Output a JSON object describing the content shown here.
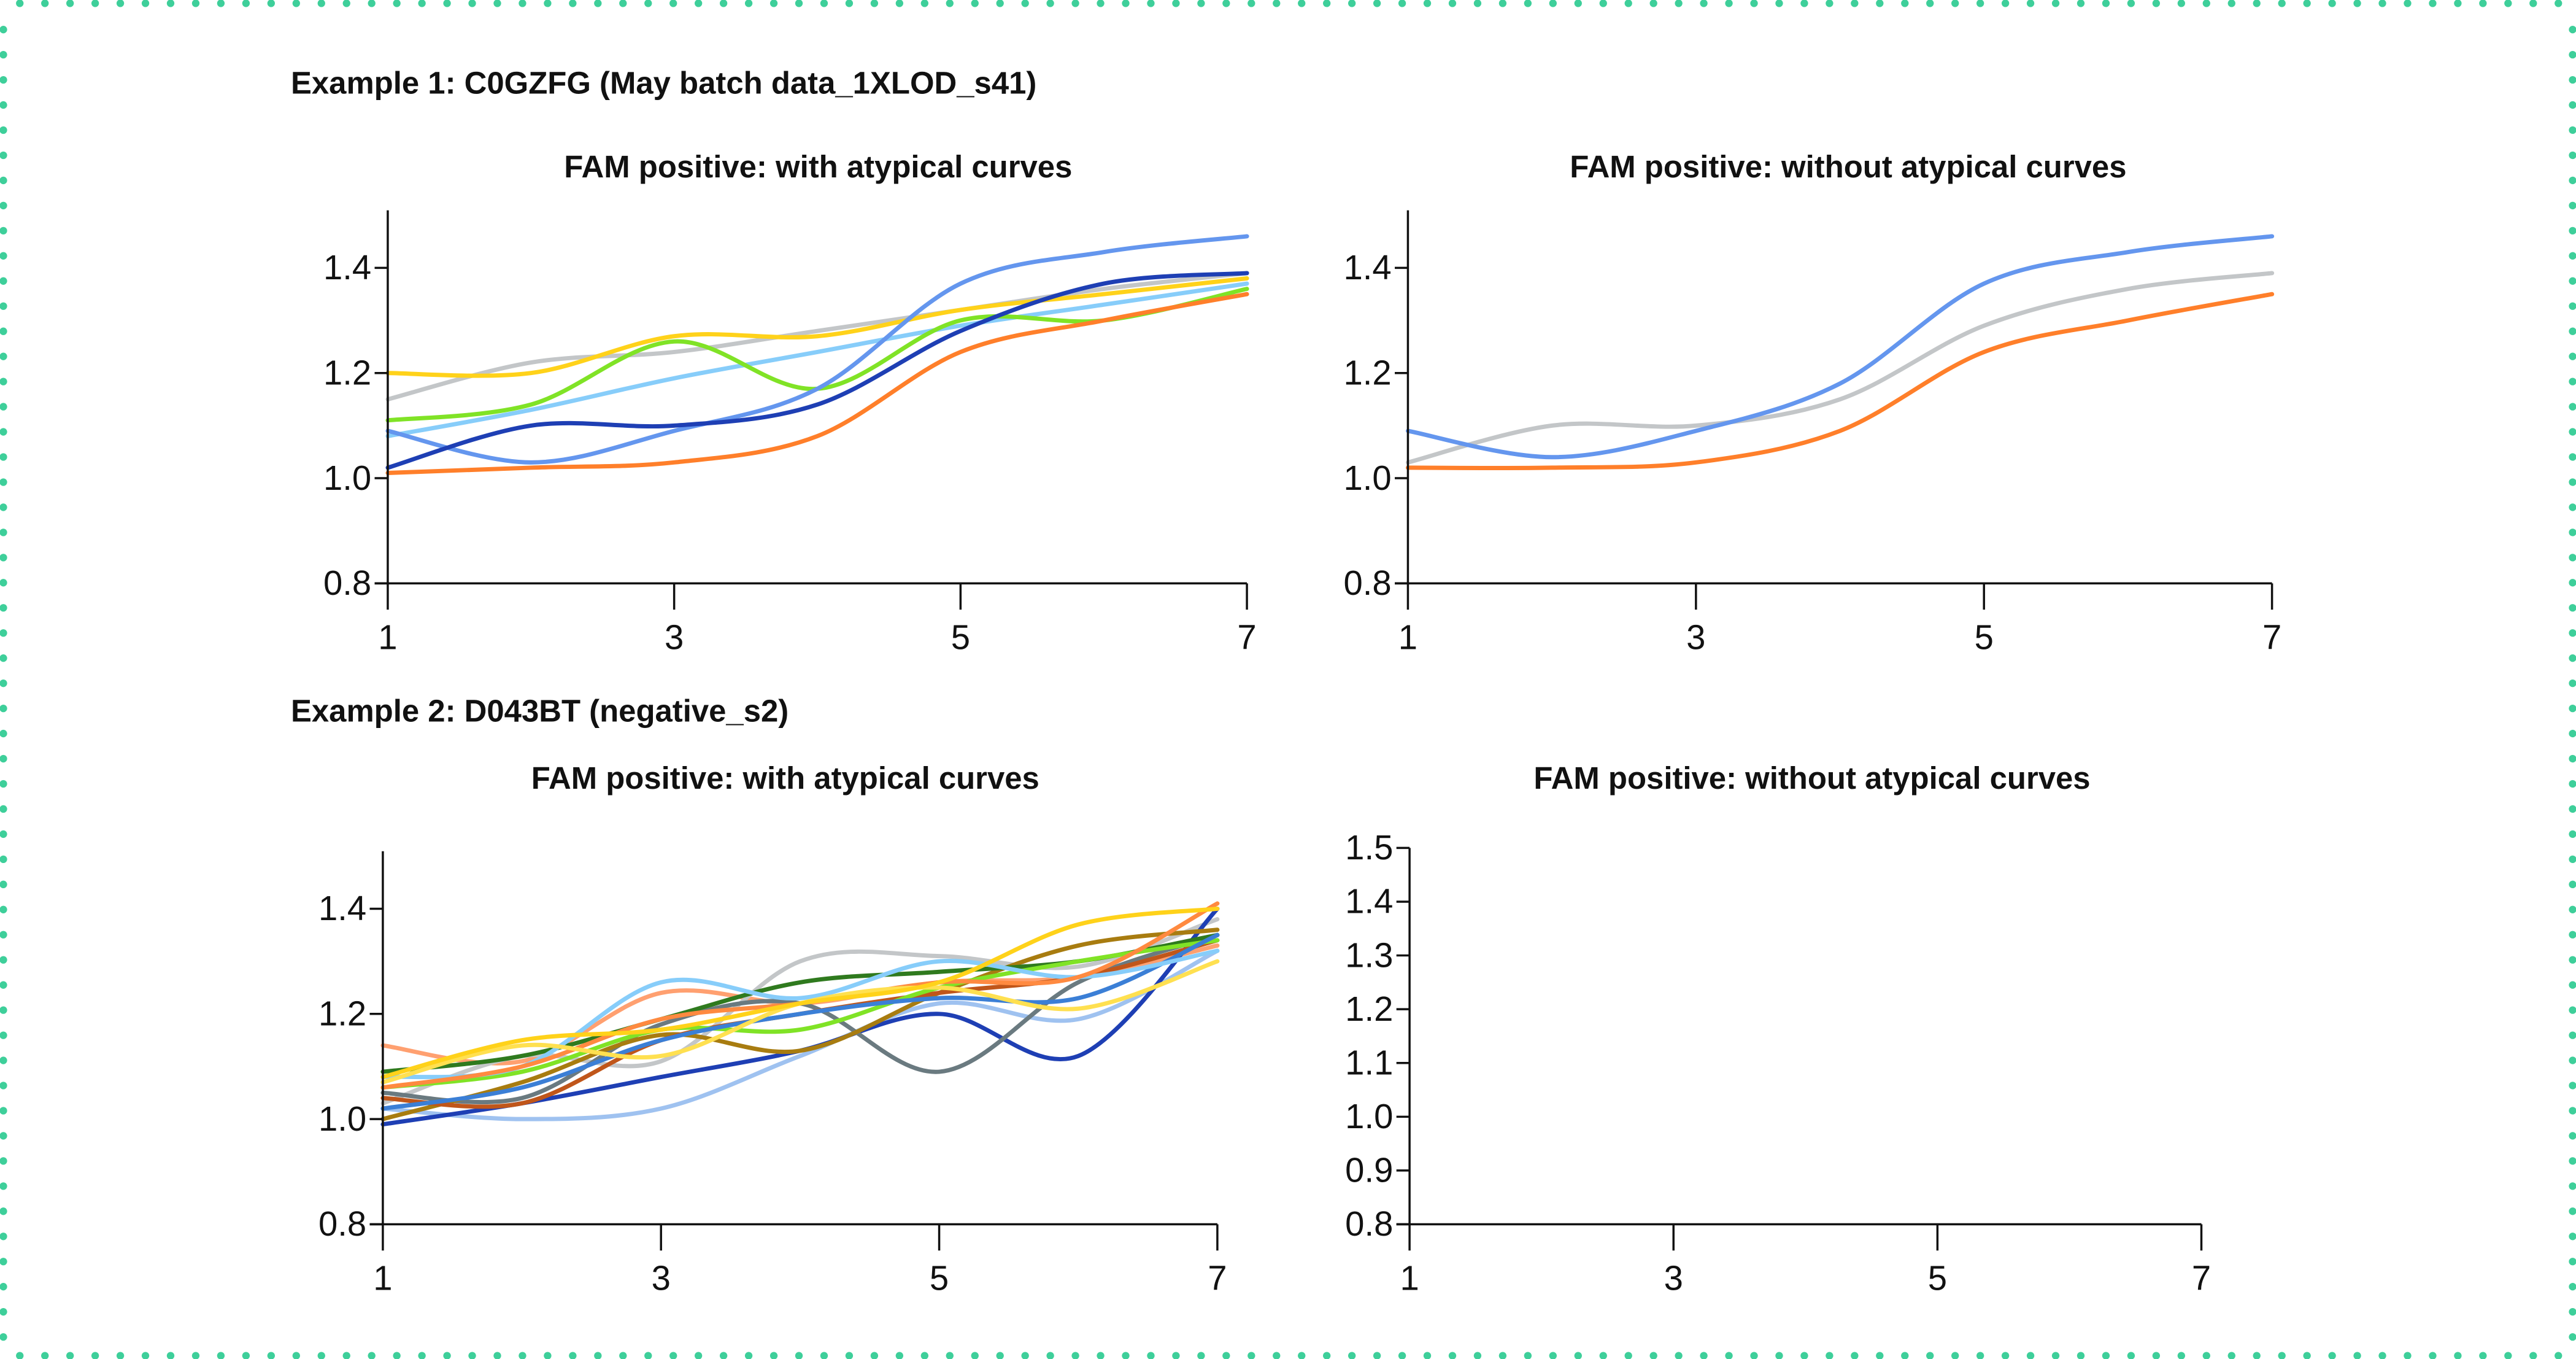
{
  "border_color": "#3ecf9a",
  "chart_data": [
    {
      "type": "line",
      "group_title": "Example 1: C0GZFG (May batch data_1XLOD_s41)",
      "title": "FAM positive: with atypical curves",
      "x": [
        1,
        2,
        3,
        4,
        5,
        6,
        7
      ],
      "xticks": [
        "1",
        "3",
        "5",
        "7"
      ],
      "yticks": [
        "0.8",
        "1.0",
        "1.2",
        "1.4"
      ],
      "xlim": [
        1,
        7
      ],
      "ylim": [
        0.8,
        1.5
      ],
      "grid": false,
      "series": [
        {
          "color": "#c3c6c8",
          "values": [
            1.15,
            1.22,
            1.24,
            1.28,
            1.32,
            1.36,
            1.39
          ]
        },
        {
          "color": "#87cdfa",
          "values": [
            1.08,
            1.13,
            1.19,
            1.24,
            1.29,
            1.33,
            1.37
          ]
        },
        {
          "color": "#ffd21a",
          "values": [
            1.2,
            1.2,
            1.27,
            1.27,
            1.32,
            1.35,
            1.38
          ]
        },
        {
          "color": "#80e326",
          "values": [
            1.11,
            1.14,
            1.26,
            1.17,
            1.3,
            1.3,
            1.36
          ]
        },
        {
          "color": "#6496ee",
          "values": [
            1.09,
            1.03,
            1.09,
            1.17,
            1.37,
            1.43,
            1.46
          ]
        },
        {
          "color": "#ff7f2a",
          "values": [
            1.01,
            1.02,
            1.03,
            1.08,
            1.24,
            1.3,
            1.35
          ]
        },
        {
          "color": "#1e3fb4",
          "values": [
            1.02,
            1.1,
            1.1,
            1.14,
            1.28,
            1.37,
            1.39
          ]
        }
      ]
    },
    {
      "type": "line",
      "title": "FAM positive: without atypical curves",
      "x": [
        1,
        2,
        3,
        4,
        5,
        6,
        7
      ],
      "xticks": [
        "1",
        "3",
        "5",
        "7"
      ],
      "yticks": [
        "0.8",
        "1.0",
        "1.2",
        "1.4"
      ],
      "xlim": [
        1,
        7
      ],
      "ylim": [
        0.8,
        1.5
      ],
      "grid": false,
      "series": [
        {
          "color": "#c3c6c8",
          "values": [
            1.03,
            1.1,
            1.1,
            1.15,
            1.29,
            1.36,
            1.39
          ]
        },
        {
          "color": "#6496ee",
          "values": [
            1.09,
            1.04,
            1.09,
            1.18,
            1.37,
            1.43,
            1.46
          ]
        },
        {
          "color": "#ff7f2a",
          "values": [
            1.02,
            1.02,
            1.03,
            1.09,
            1.24,
            1.3,
            1.35
          ]
        }
      ]
    },
    {
      "type": "line",
      "group_title": "Example 2: D043BT (negative_s2)",
      "title": "FAM positive: with atypical curves",
      "x": [
        1,
        2,
        3,
        4,
        5,
        6,
        7
      ],
      "xticks": [
        "1",
        "3",
        "5",
        "7"
      ],
      "yticks": [
        "0.8",
        "1.0",
        "1.2",
        "1.4"
      ],
      "xlim": [
        1,
        7
      ],
      "ylim": [
        0.8,
        1.5
      ],
      "grid": false,
      "series": [
        {
          "color": "#ffa070",
          "values": [
            1.14,
            1.11,
            1.24,
            1.22,
            1.26,
            1.27,
            1.33
          ]
        },
        {
          "color": "#c3c6c8",
          "values": [
            1.03,
            1.12,
            1.11,
            1.3,
            1.31,
            1.29,
            1.38
          ]
        },
        {
          "color": "#9fc2f0",
          "values": [
            1.02,
            1.0,
            1.02,
            1.12,
            1.22,
            1.19,
            1.32
          ]
        },
        {
          "color": "#1e3fb4",
          "values": [
            0.99,
            1.03,
            1.08,
            1.13,
            1.2,
            1.12,
            1.4
          ]
        },
        {
          "color": "#6a7a80",
          "values": [
            1.05,
            1.04,
            1.18,
            1.22,
            1.09,
            1.26,
            1.35
          ]
        },
        {
          "color": "#a87c10",
          "values": [
            1.0,
            1.07,
            1.16,
            1.13,
            1.24,
            1.33,
            1.36
          ]
        },
        {
          "color": "#c0561a",
          "values": [
            1.04,
            1.03,
            1.15,
            1.2,
            1.24,
            1.27,
            1.34
          ]
        },
        {
          "color": "#2f7a1e",
          "values": [
            1.09,
            1.12,
            1.19,
            1.26,
            1.28,
            1.3,
            1.35
          ]
        },
        {
          "color": "#80e326",
          "values": [
            1.06,
            1.09,
            1.17,
            1.17,
            1.25,
            1.3,
            1.34
          ]
        },
        {
          "color": "#3b7fd6",
          "values": [
            1.02,
            1.06,
            1.15,
            1.2,
            1.23,
            1.23,
            1.35
          ]
        },
        {
          "color": "#87cdfa",
          "values": [
            1.08,
            1.1,
            1.26,
            1.23,
            1.3,
            1.27,
            1.32
          ]
        },
        {
          "color": "#ff8a40",
          "values": [
            1.06,
            1.1,
            1.19,
            1.22,
            1.26,
            1.27,
            1.41
          ]
        },
        {
          "color": "#ffe050",
          "values": [
            1.07,
            1.14,
            1.12,
            1.22,
            1.25,
            1.21,
            1.3
          ]
        },
        {
          "color": "#ffd21a",
          "values": [
            1.08,
            1.15,
            1.17,
            1.22,
            1.26,
            1.37,
            1.4
          ]
        }
      ]
    },
    {
      "type": "line",
      "title": "FAM positive: without atypical curves",
      "x": [],
      "xticks": [
        "1",
        "3",
        "5",
        "7"
      ],
      "yticks": [
        "0.8",
        "0.9",
        "1.0",
        "1.1",
        "1.2",
        "1.3",
        "1.4",
        "1.5"
      ],
      "xlim": [
        1,
        7
      ],
      "ylim": [
        0.8,
        1.5
      ],
      "grid": false,
      "series": []
    }
  ]
}
